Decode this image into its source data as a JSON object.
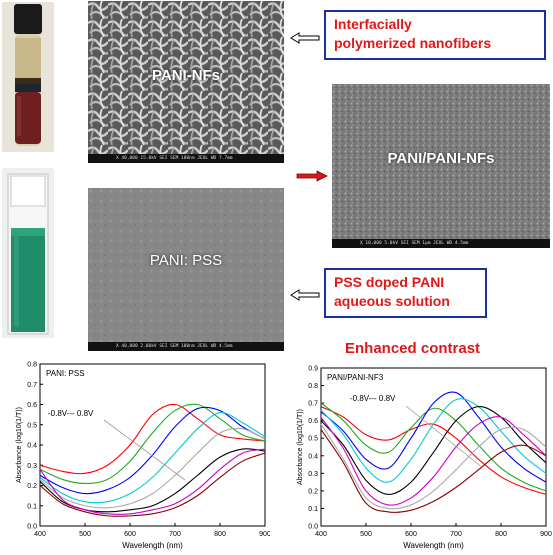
{
  "photos": {
    "vial": "vial-photo",
    "cuvette": "cuvette-photo"
  },
  "sem": {
    "nanofibers": {
      "label": "PANI-NFs",
      "bar": "X 40,000   15.0kV  SEI     SEM     100nm   JEOL    WD 7.7mm"
    },
    "composite": {
      "label": "PANI/PANI-NFs",
      "bar": "X 10,000   5.0kV   SEI     SEM     1μm   JEOL    WD 4.5mm"
    },
    "pss": {
      "label": "PANI: PSS",
      "bar": "X 40,000   2.00kV  SEI     SEM     100nm   JEOL    WD 4.5mm"
    }
  },
  "callouts": {
    "interfacial": [
      "Interfacially",
      "polymerized nanofibers"
    ],
    "pss_doped": [
      "PSS doped PANI",
      "aqueous solution"
    ]
  },
  "heading": "Enhanced contrast",
  "colors": {
    "accent_red": "#e01818",
    "box_blue": "#1a2fa0"
  },
  "chart_data": [
    {
      "type": "line",
      "title": "PANI: PSS",
      "annotation": "-0.8V--- 0.8V",
      "xlabel": "Wavelength (nm)",
      "ylabel": "Absorbance (log10(1/T))",
      "xlim": [
        400,
        900
      ],
      "xticks": [
        "400",
        "500",
        "600",
        "700",
        "800",
        "900"
      ],
      "ylim": [
        0.0,
        0.8
      ],
      "yticks": [
        "0.0",
        "0.1",
        "0.2",
        "0.3",
        "0.4",
        "0.5",
        "0.6",
        "0.7",
        "0.8"
      ],
      "x": [
        400,
        450,
        500,
        550,
        600,
        650,
        700,
        750,
        800,
        850,
        900
      ],
      "series": [
        {
          "color": "#ff0000",
          "values": [
            0.3,
            0.27,
            0.26,
            0.3,
            0.4,
            0.55,
            0.6,
            0.53,
            0.45,
            0.43,
            0.42
          ]
        },
        {
          "color": "#22aa22",
          "values": [
            0.28,
            0.23,
            0.21,
            0.23,
            0.32,
            0.46,
            0.57,
            0.6,
            0.53,
            0.45,
            0.42
          ]
        },
        {
          "color": "#0000ff",
          "values": [
            0.25,
            0.19,
            0.16,
            0.18,
            0.24,
            0.35,
            0.49,
            0.58,
            0.57,
            0.49,
            0.43
          ]
        },
        {
          "color": "#00cccc",
          "values": [
            0.24,
            0.16,
            0.12,
            0.12,
            0.16,
            0.24,
            0.36,
            0.48,
            0.56,
            0.51,
            0.44
          ]
        },
        {
          "color": "#aaaaaa",
          "values": [
            0.23,
            0.14,
            0.1,
            0.09,
            0.11,
            0.16,
            0.25,
            0.36,
            0.46,
            0.48,
            0.43
          ]
        },
        {
          "color": "#000000",
          "values": [
            0.22,
            0.12,
            0.08,
            0.07,
            0.08,
            0.1,
            0.16,
            0.25,
            0.34,
            0.38,
            0.37
          ]
        },
        {
          "color": "#cc00cc",
          "values": [
            0.28,
            0.13,
            0.08,
            0.06,
            0.06,
            0.08,
            0.11,
            0.18,
            0.28,
            0.36,
            0.38
          ]
        },
        {
          "color": "#8b0000",
          "values": [
            0.2,
            0.11,
            0.07,
            0.05,
            0.05,
            0.06,
            0.09,
            0.15,
            0.24,
            0.32,
            0.36
          ]
        }
      ]
    },
    {
      "type": "line",
      "title": "PANI/PANI-NF3",
      "annotation": "-0.8V--- 0.8V",
      "xlabel": "Wavelength (nm)",
      "ylabel": "Absorbance (log10(1/T))",
      "xlim": [
        400,
        900
      ],
      "xticks": [
        "400",
        "500",
        "600",
        "700",
        "800",
        "900"
      ],
      "ylim": [
        0.0,
        0.9
      ],
      "yticks": [
        "0.0",
        "0.1",
        "0.2",
        "0.3",
        "0.4",
        "0.5",
        "0.6",
        "0.7",
        "0.8",
        "0.9"
      ],
      "x": [
        400,
        450,
        500,
        550,
        600,
        650,
        700,
        750,
        800,
        850,
        900
      ],
      "series": [
        {
          "color": "#ff0000",
          "values": [
            0.68,
            0.62,
            0.52,
            0.49,
            0.55,
            0.58,
            0.5,
            0.38,
            0.28,
            0.22,
            0.18
          ]
        },
        {
          "color": "#22aa22",
          "values": [
            0.7,
            0.6,
            0.46,
            0.42,
            0.56,
            0.67,
            0.6,
            0.46,
            0.33,
            0.25,
            0.2
          ]
        },
        {
          "color": "#0000ff",
          "values": [
            0.65,
            0.54,
            0.38,
            0.33,
            0.5,
            0.7,
            0.76,
            0.62,
            0.45,
            0.33,
            0.25
          ]
        },
        {
          "color": "#00cccc",
          "values": [
            0.66,
            0.52,
            0.33,
            0.25,
            0.38,
            0.58,
            0.72,
            0.68,
            0.54,
            0.4,
            0.3
          ]
        },
        {
          "color": "#000000",
          "values": [
            0.6,
            0.46,
            0.26,
            0.18,
            0.25,
            0.42,
            0.6,
            0.68,
            0.62,
            0.48,
            0.36
          ]
        },
        {
          "color": "#cc00cc",
          "values": [
            0.62,
            0.44,
            0.2,
            0.12,
            0.16,
            0.28,
            0.45,
            0.58,
            0.62,
            0.52,
            0.4
          ]
        },
        {
          "color": "#aaaaaa",
          "values": [
            0.58,
            0.38,
            0.16,
            0.1,
            0.12,
            0.2,
            0.32,
            0.45,
            0.55,
            0.55,
            0.45
          ]
        },
        {
          "color": "#8b0000",
          "values": [
            0.55,
            0.36,
            0.13,
            0.08,
            0.09,
            0.14,
            0.22,
            0.32,
            0.42,
            0.46,
            0.4
          ]
        }
      ]
    }
  ]
}
